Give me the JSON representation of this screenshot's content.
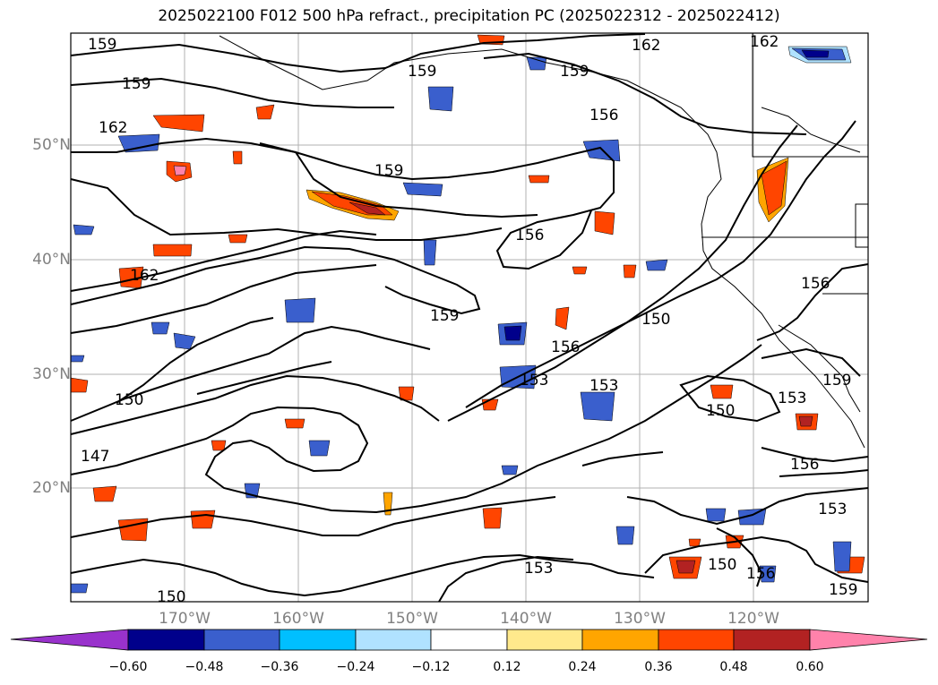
{
  "title": "2025022100 F012 500 hPa refract., precipitation PC (2025022312 - 2025022412)",
  "lat_labels": [
    "50°N",
    "40°N",
    "30°N",
    "20°N"
  ],
  "lon_labels": [
    "170°W",
    "160°W",
    "150°W",
    "140°W",
    "130°W",
    "120°W"
  ],
  "colorbar": {
    "ticks": [
      "−0.60",
      "−0.48",
      "−0.36",
      "−0.24",
      "−0.12",
      "0.12",
      "0.24",
      "0.36",
      "0.48",
      "0.60"
    ],
    "colors": [
      "#9932cc",
      "#00008b",
      "#3a5fcd",
      "#00bfff",
      "#b0e2ff",
      "#ffffff",
      "#ffe98c",
      "#ffa500",
      "#ff4500",
      "#b22222",
      "#ff82ab"
    ]
  },
  "contour_labels": [
    "159",
    "159",
    "162",
    "159",
    "159",
    "162",
    "162",
    "156",
    "159",
    "156",
    "162",
    "159",
    "156",
    "150",
    "150",
    "153",
    "153",
    "153",
    "150",
    "156",
    "147",
    "150",
    "153",
    "159",
    "156",
    "153",
    "156",
    "150",
    "159"
  ],
  "colors": {
    "positive_high": "#ff4500",
    "positive_mid": "#ffa500",
    "negative_mid": "#3a5fcd",
    "negative_light": "#b0e2ff",
    "grid": "#b0b0b0"
  }
}
